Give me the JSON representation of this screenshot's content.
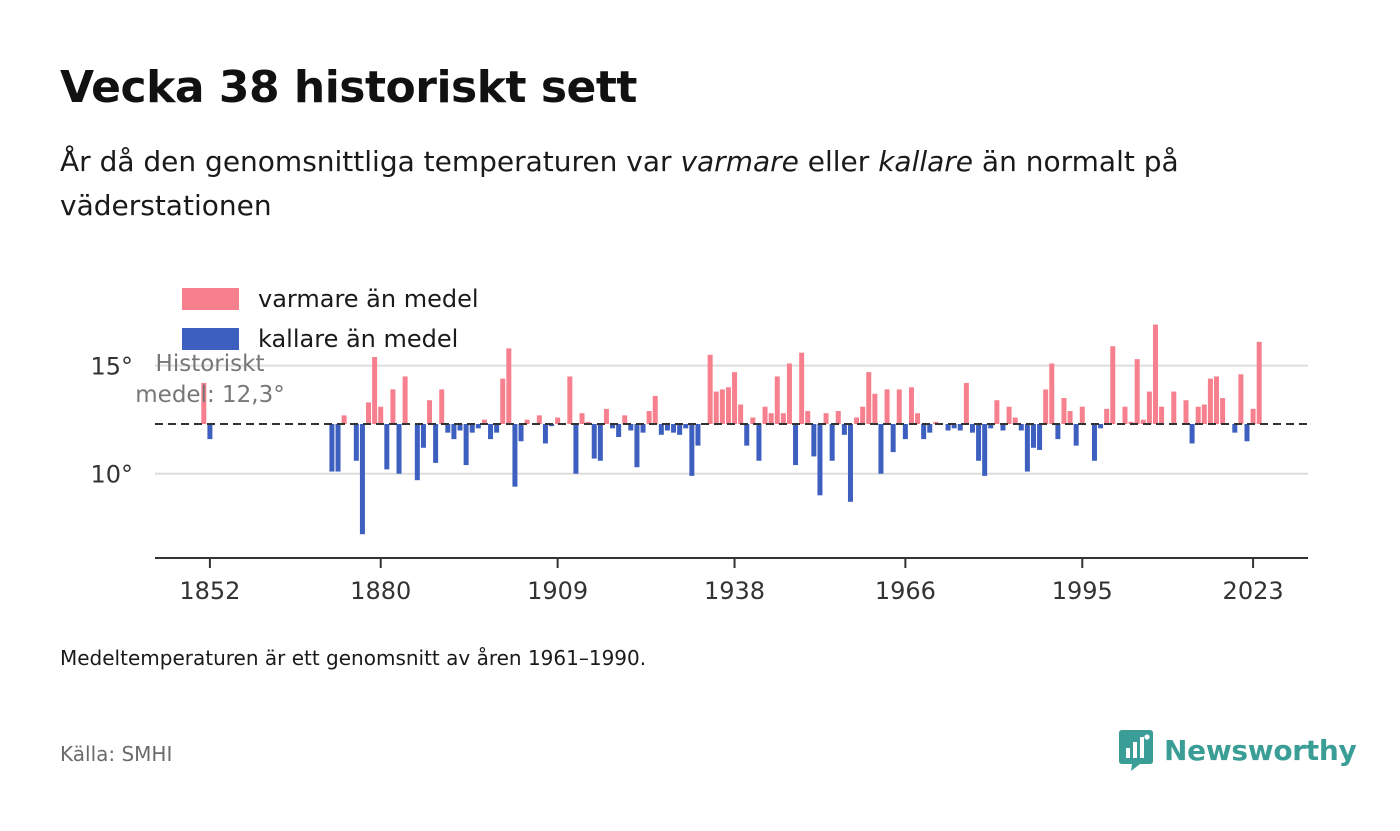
{
  "title": "Vecka 38 historiskt sett",
  "subtitle": {
    "part1": "År då den genomsnittliga temperaturen var ",
    "warm": "varmare",
    "part2": " eller ",
    "cold": "kallare",
    "part3": " än normalt på väderstationen"
  },
  "footnote": "Medeltemperaturen är ett genomsnitt av åren 1961–1990.",
  "source": "Källa: SMHI",
  "brand": "Newsworthy",
  "colors": {
    "warm": "#f7808e",
    "cold": "#3d5fbf",
    "accent": "#3a9e96"
  },
  "chart_data": {
    "type": "bar",
    "baseline": 12.3,
    "baseline_label": [
      "Historiskt",
      "medel: 12,3°"
    ],
    "legend": [
      {
        "key": "warm",
        "label": "varmare än medel"
      },
      {
        "key": "cold",
        "label": "kallare än medel"
      }
    ],
    "y_ticks": [
      10,
      15
    ],
    "y_tick_labels": [
      "10°",
      "15°"
    ],
    "y_range": [
      6.1,
      18.5
    ],
    "x_ticks": [
      1852,
      1880,
      1909,
      1938,
      1966,
      1995,
      2023
    ],
    "x_range": [
      1843,
      2032
    ],
    "data": [
      [
        1851,
        14.2
      ],
      [
        1852,
        11.6
      ],
      [
        1872,
        10.1
      ],
      [
        1873,
        10.1
      ],
      [
        1874,
        12.7
      ],
      [
        1876,
        10.6
      ],
      [
        1877,
        7.2
      ],
      [
        1878,
        13.3
      ],
      [
        1879,
        15.4
      ],
      [
        1880,
        13.1
      ],
      [
        1881,
        10.2
      ],
      [
        1882,
        13.9
      ],
      [
        1883,
        10.0
      ],
      [
        1884,
        14.5
      ],
      [
        1886,
        9.7
      ],
      [
        1887,
        11.2
      ],
      [
        1888,
        13.4
      ],
      [
        1889,
        10.5
      ],
      [
        1890,
        13.9
      ],
      [
        1891,
        11.9
      ],
      [
        1892,
        11.6
      ],
      [
        1893,
        12.0
      ],
      [
        1894,
        10.4
      ],
      [
        1895,
        11.9
      ],
      [
        1896,
        12.1
      ],
      [
        1897,
        12.5
      ],
      [
        1898,
        11.6
      ],
      [
        1899,
        11.9
      ],
      [
        1900,
        14.4
      ],
      [
        1901,
        15.8
      ],
      [
        1902,
        9.4
      ],
      [
        1903,
        11.5
      ],
      [
        1904,
        12.5
      ],
      [
        1906,
        12.7
      ],
      [
        1907,
        11.4
      ],
      [
        1908,
        12.2
      ],
      [
        1909,
        12.6
      ],
      [
        1911,
        14.5
      ],
      [
        1912,
        10.0
      ],
      [
        1913,
        12.8
      ],
      [
        1914,
        12.4
      ],
      [
        1915,
        10.7
      ],
      [
        1916,
        10.6
      ],
      [
        1917,
        13.0
      ],
      [
        1918,
        12.1
      ],
      [
        1919,
        11.7
      ],
      [
        1920,
        12.7
      ],
      [
        1921,
        12.0
      ],
      [
        1922,
        10.3
      ],
      [
        1923,
        11.9
      ],
      [
        1924,
        12.9
      ],
      [
        1925,
        13.6
      ],
      [
        1926,
        11.8
      ],
      [
        1927,
        12.0
      ],
      [
        1928,
        11.9
      ],
      [
        1929,
        11.8
      ],
      [
        1930,
        12.1
      ],
      [
        1931,
        9.9
      ],
      [
        1932,
        11.3
      ],
      [
        1934,
        15.5
      ],
      [
        1935,
        13.8
      ],
      [
        1936,
        13.9
      ],
      [
        1937,
        14.0
      ],
      [
        1938,
        14.7
      ],
      [
        1939,
        13.2
      ],
      [
        1940,
        11.3
      ],
      [
        1941,
        12.6
      ],
      [
        1942,
        10.6
      ],
      [
        1943,
        13.1
      ],
      [
        1944,
        12.8
      ],
      [
        1945,
        14.5
      ],
      [
        1946,
        12.8
      ],
      [
        1947,
        15.1
      ],
      [
        1948,
        10.4
      ],
      [
        1949,
        15.6
      ],
      [
        1950,
        12.9
      ],
      [
        1951,
        10.8
      ],
      [
        1952,
        9.0
      ],
      [
        1953,
        12.8
      ],
      [
        1954,
        10.6
      ],
      [
        1955,
        12.9
      ],
      [
        1956,
        11.8
      ],
      [
        1957,
        8.7
      ],
      [
        1958,
        12.6
      ],
      [
        1959,
        13.1
      ],
      [
        1960,
        14.7
      ],
      [
        1961,
        13.7
      ],
      [
        1962,
        10.0
      ],
      [
        1963,
        13.9
      ],
      [
        1964,
        11.0
      ],
      [
        1965,
        13.9
      ],
      [
        1966,
        11.6
      ],
      [
        1967,
        14.0
      ],
      [
        1968,
        12.8
      ],
      [
        1969,
        11.6
      ],
      [
        1970,
        11.9
      ],
      [
        1971,
        12.4
      ],
      [
        1973,
        12.0
      ],
      [
        1974,
        12.1
      ],
      [
        1975,
        12.0
      ],
      [
        1976,
        14.2
      ],
      [
        1977,
        11.9
      ],
      [
        1978,
        10.6
      ],
      [
        1979,
        9.9
      ],
      [
        1980,
        12.1
      ],
      [
        1981,
        13.4
      ],
      [
        1982,
        12.0
      ],
      [
        1983,
        13.1
      ],
      [
        1984,
        12.6
      ],
      [
        1985,
        12.0
      ],
      [
        1986,
        10.1
      ],
      [
        1987,
        11.2
      ],
      [
        1988,
        11.1
      ],
      [
        1989,
        13.9
      ],
      [
        1990,
        15.1
      ],
      [
        1991,
        11.6
      ],
      [
        1992,
        13.5
      ],
      [
        1993,
        12.9
      ],
      [
        1994,
        11.3
      ],
      [
        1995,
        13.1
      ],
      [
        1997,
        10.6
      ],
      [
        1998,
        12.1
      ],
      [
        1999,
        13.0
      ],
      [
        2000,
        15.9
      ],
      [
        2002,
        13.1
      ],
      [
        2003,
        12.4
      ],
      [
        2004,
        15.3
      ],
      [
        2005,
        12.5
      ],
      [
        2006,
        13.8
      ],
      [
        2007,
        16.9
      ],
      [
        2008,
        13.1
      ],
      [
        2010,
        13.8
      ],
      [
        2012,
        13.4
      ],
      [
        2013,
        11.4
      ],
      [
        2014,
        13.1
      ],
      [
        2015,
        13.2
      ],
      [
        2016,
        14.4
      ],
      [
        2017,
        14.5
      ],
      [
        2018,
        13.5
      ],
      [
        2020,
        11.9
      ],
      [
        2021,
        14.6
      ],
      [
        2022,
        11.5
      ],
      [
        2023,
        13.0
      ],
      [
        2024,
        16.1
      ]
    ]
  }
}
